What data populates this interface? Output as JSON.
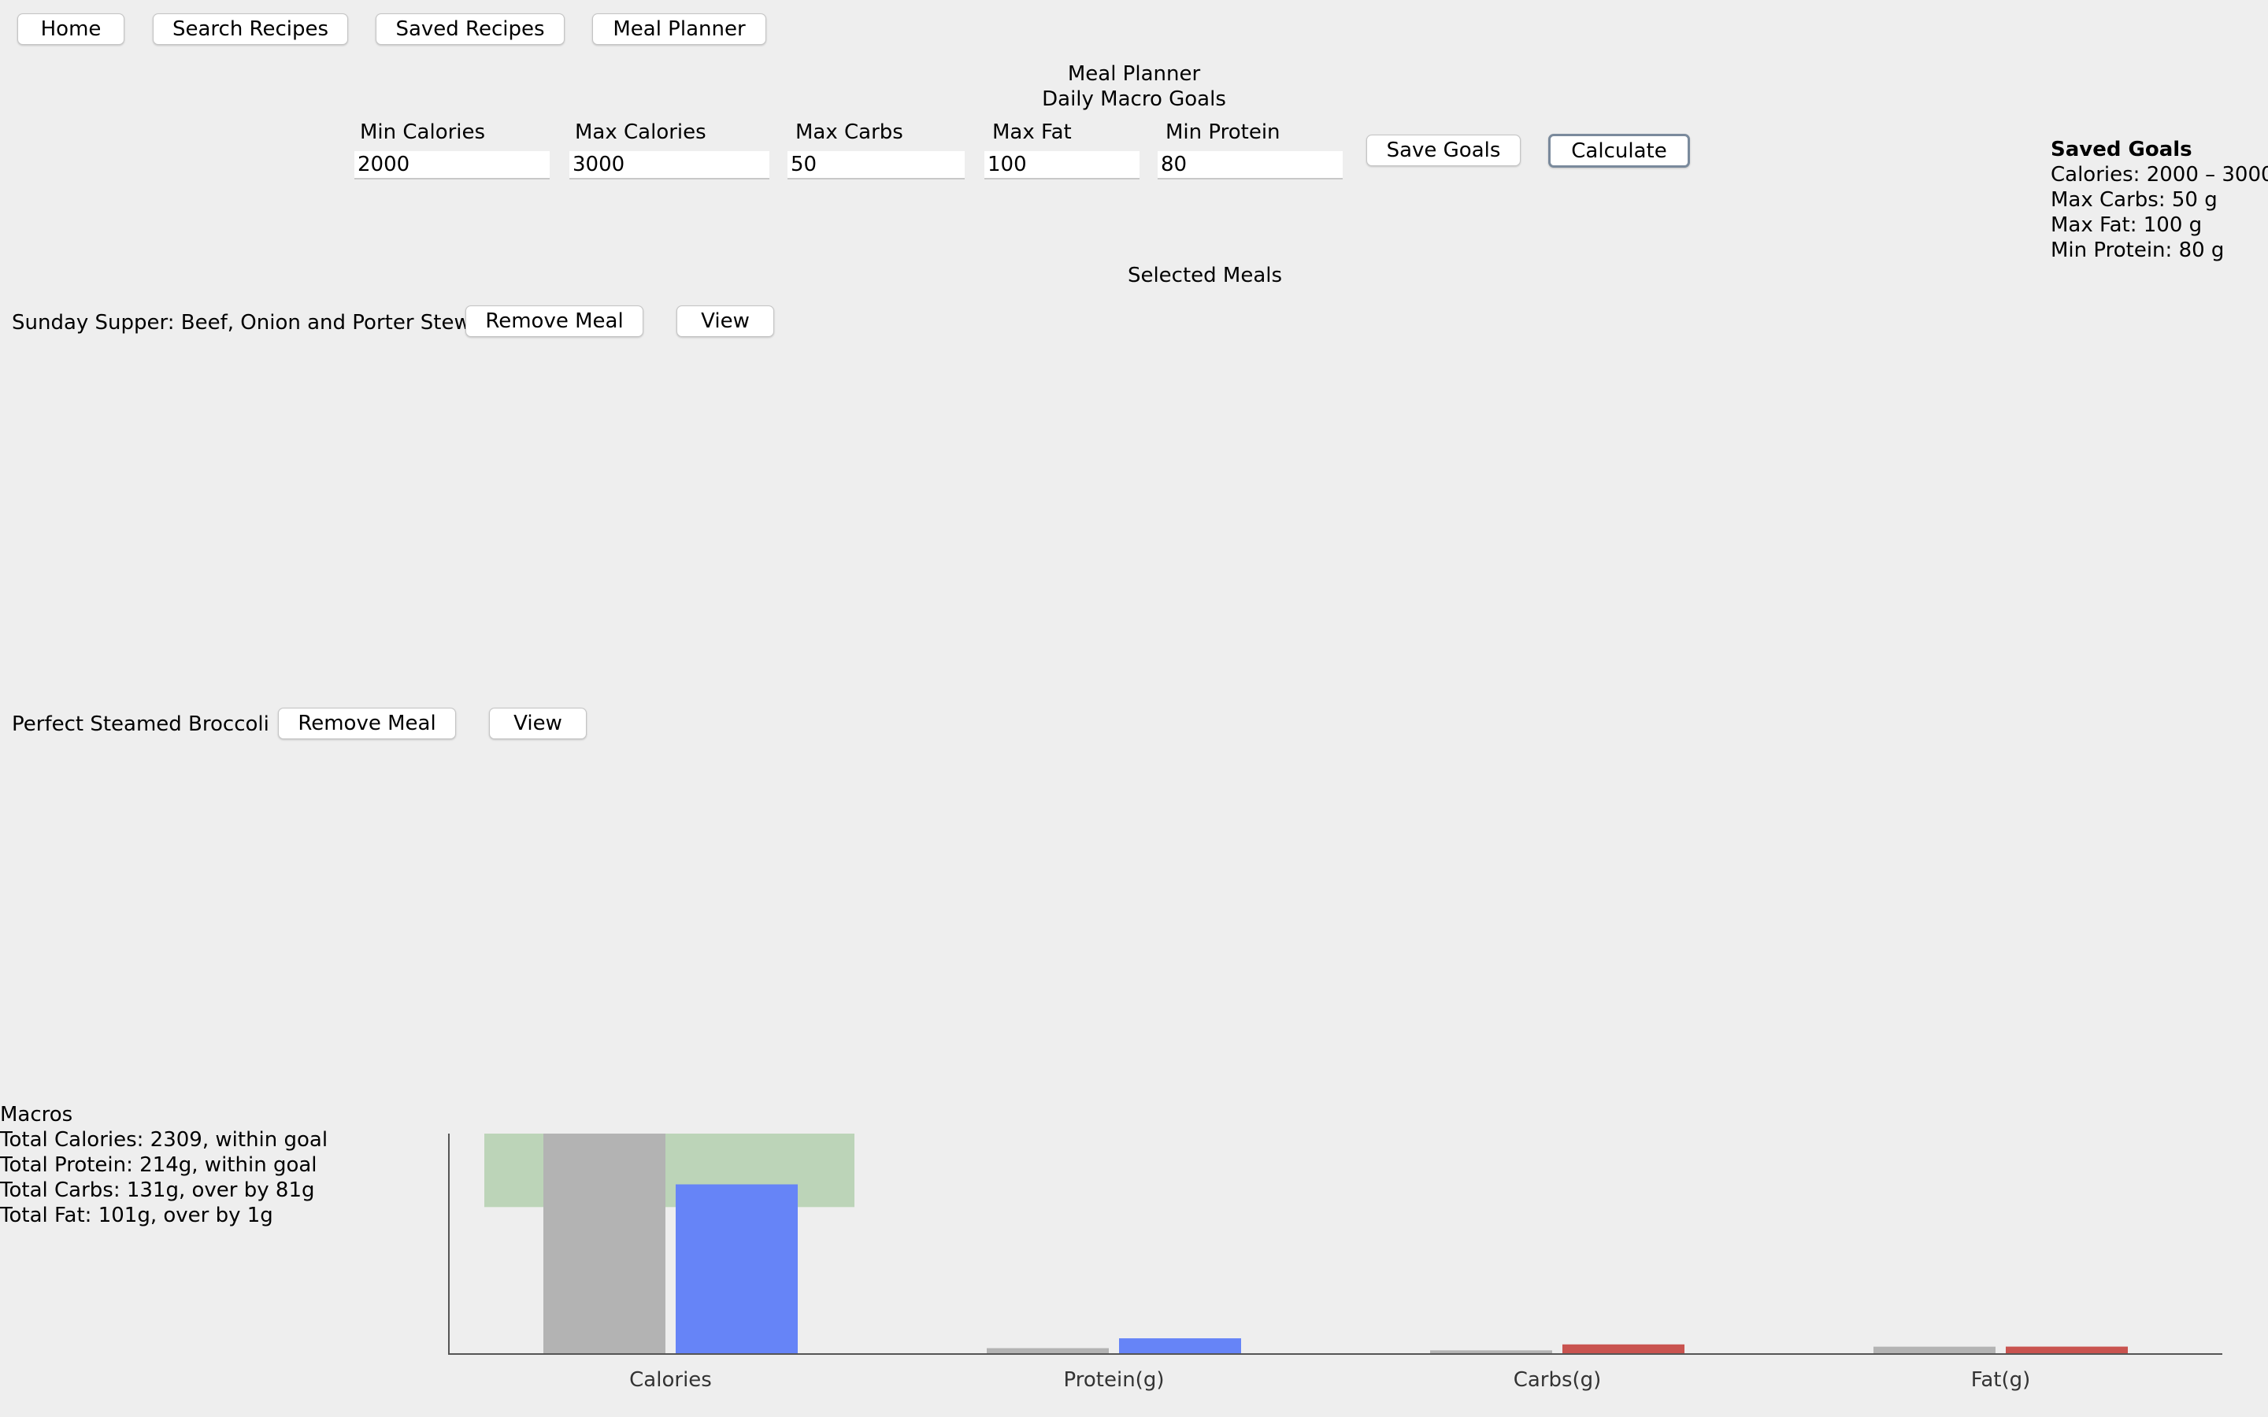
{
  "nav": {
    "home": "Home",
    "search": "Search Recipes",
    "saved": "Saved Recipes",
    "planner": "Meal Planner"
  },
  "header": {
    "title": "Meal Planner",
    "subtitle": "Daily Macro Goals"
  },
  "goals_form": {
    "min_calories_label": "Min Calories",
    "min_calories_value": "2000",
    "max_calories_label": "Max Calories",
    "max_calories_value": "3000",
    "max_carbs_label": "Max Carbs",
    "max_carbs_value": "50",
    "max_fat_label": "Max Fat",
    "max_fat_value": "100",
    "min_protein_label": "Min Protein",
    "min_protein_value": "80",
    "save_label": "Save Goals",
    "calculate_label": "Calculate"
  },
  "saved_goals": {
    "title": "Saved Goals",
    "calories": "Calories: 2000 – 3000",
    "carbs": "Max Carbs: 50 g",
    "fat": "Max Fat: 100 g",
    "protein": "Min Protein: 80 g"
  },
  "selected_meals": {
    "title": "Selected Meals",
    "meals": [
      {
        "name": "Sunday Supper: Beef, Onion and Porter Stew",
        "remove_label": "Remove Meal",
        "view_label": "View"
      },
      {
        "name": "Perfect Steamed Broccoli",
        "remove_label": "Remove Meal",
        "view_label": "View"
      }
    ]
  },
  "macros": {
    "title": "Macros",
    "total_calories": "Total Calories: 2309, within goal",
    "total_protein": "Total Protein: 214g, within goal",
    "total_carbs": "Total Carbs: 131g, over by 81g",
    "total_fat": "Total Fat: 101g, over by 1g"
  },
  "colors": {
    "goal_bar": "#b3b3b3",
    "within": "#6684f7",
    "over": "#c9534f",
    "goal_band": "#bcd4b8",
    "axis": "#555555"
  },
  "chart_data": {
    "type": "bar",
    "categories": [
      "Calories",
      "Protein(g)",
      "Carbs(g)",
      "Fat(g)"
    ],
    "series": [
      {
        "values": [
          3000,
          80,
          50,
          100
        ]
      },
      {
        "values": [
          2309,
          214,
          131,
          101
        ]
      }
    ],
    "goal_band": {
      "category": "Calories",
      "range": [
        2000,
        3000
      ]
    },
    "ylim": [
      0,
      3000
    ],
    "grid": false,
    "legend": "none"
  }
}
